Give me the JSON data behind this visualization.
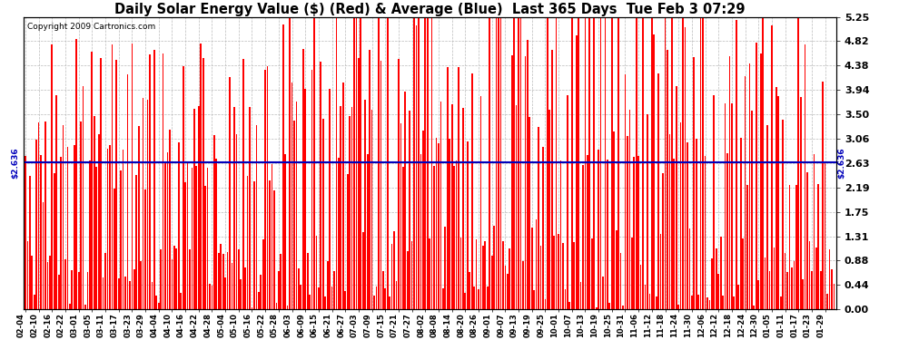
{
  "title": "Daily Solar Energy Value ($) (Red) & Average (Blue)  Last 365 Days  Tue Feb 3 07:29",
  "copyright": "Copyright 2009 Cartronics.com",
  "average_value": 2.636,
  "ylim": [
    0,
    5.25
  ],
  "yticks": [
    0.0,
    0.44,
    0.88,
    1.31,
    1.75,
    2.19,
    2.63,
    3.06,
    3.5,
    3.94,
    4.38,
    4.82,
    5.25
  ],
  "bar_color": "#ff0000",
  "avg_line_color": "#0000bb",
  "bg_color": "#ffffff",
  "grid_color": "#bbbbbb",
  "title_fontsize": 10.5,
  "avg_label": "$2.636",
  "x_label_rotation": 90,
  "x_labels": [
    "02-04",
    "02-10",
    "02-16",
    "02-22",
    "03-01",
    "03-05",
    "03-11",
    "03-17",
    "03-23",
    "03-29",
    "04-04",
    "04-10",
    "04-16",
    "04-22",
    "04-28",
    "05-04",
    "05-10",
    "05-16",
    "05-22",
    "05-28",
    "06-03",
    "06-09",
    "06-15",
    "06-21",
    "06-27",
    "07-03",
    "07-09",
    "07-15",
    "07-21",
    "07-27",
    "08-02",
    "08-08",
    "08-14",
    "08-20",
    "08-26",
    "09-01",
    "09-07",
    "09-13",
    "09-19",
    "09-25",
    "10-01",
    "10-07",
    "10-13",
    "10-19",
    "10-25",
    "10-31",
    "11-06",
    "11-12",
    "11-18",
    "11-24",
    "11-30",
    "12-06",
    "12-12",
    "12-18",
    "12-24",
    "12-30",
    "01-05",
    "01-11",
    "01-17",
    "01-23",
    "01-29"
  ]
}
